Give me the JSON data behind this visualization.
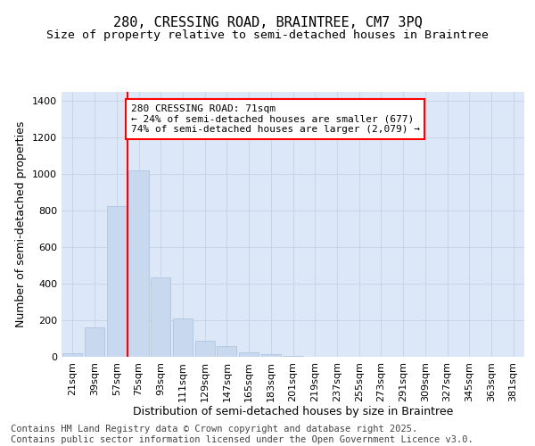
{
  "title_line1": "280, CRESSING ROAD, BRAINTREE, CM7 3PQ",
  "title_line2": "Size of property relative to semi-detached houses in Braintree",
  "xlabel": "Distribution of semi-detached houses by size in Braintree",
  "ylabel": "Number of semi-detached properties",
  "categories": [
    "21sqm",
    "39sqm",
    "57sqm",
    "75sqm",
    "93sqm",
    "111sqm",
    "129sqm",
    "147sqm",
    "165sqm",
    "183sqm",
    "201sqm",
    "219sqm",
    "237sqm",
    "255sqm",
    "273sqm",
    "291sqm",
    "309sqm",
    "327sqm",
    "345sqm",
    "363sqm",
    "381sqm"
  ],
  "values": [
    20,
    160,
    825,
    1020,
    435,
    210,
    90,
    60,
    25,
    15,
    5,
    0,
    0,
    0,
    0,
    0,
    0,
    0,
    0,
    0,
    0
  ],
  "bar_color": "#c8d8ee",
  "bar_edge_color": "#a8c0de",
  "grid_color": "#c8d4e8",
  "background_color": "#dce8f8",
  "vline_color": "red",
  "vline_x_index": 3,
  "annotation_text": "280 CRESSING ROAD: 71sqm\n← 24% of semi-detached houses are smaller (677)\n74% of semi-detached houses are larger (2,079) →",
  "annotation_box_facecolor": "white",
  "annotation_box_edgecolor": "red",
  "ylim": [
    0,
    1450
  ],
  "yticks": [
    0,
    200,
    400,
    600,
    800,
    1000,
    1200,
    1400
  ],
  "footer_text": "Contains HM Land Registry data © Crown copyright and database right 2025.\nContains public sector information licensed under the Open Government Licence v3.0.",
  "title_fontsize": 11,
  "subtitle_fontsize": 9.5,
  "axis_label_fontsize": 9,
  "tick_fontsize": 8,
  "annotation_fontsize": 8,
  "footer_fontsize": 7.5
}
